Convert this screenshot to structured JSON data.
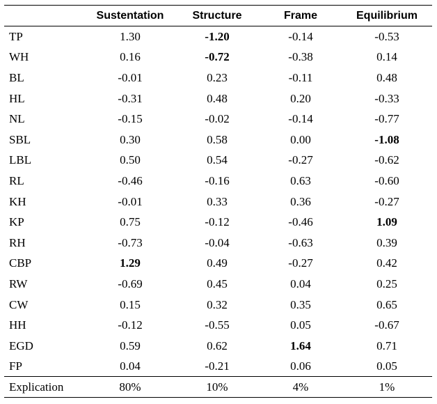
{
  "table": {
    "columns": [
      "",
      "Sustentation",
      "Structure",
      "Frame",
      "Equilibrium"
    ],
    "rows": [
      {
        "label": "TP",
        "values": [
          "1.30",
          "-1.20",
          "-0.14",
          "-0.53"
        ],
        "bold": [
          false,
          true,
          false,
          false
        ]
      },
      {
        "label": "WH",
        "values": [
          "0.16",
          "-0.72",
          "-0.38",
          "0.14"
        ],
        "bold": [
          false,
          true,
          false,
          false
        ]
      },
      {
        "label": "BL",
        "values": [
          "-0.01",
          "0.23",
          "-0.11",
          "0.48"
        ],
        "bold": [
          false,
          false,
          false,
          false
        ]
      },
      {
        "label": "HL",
        "values": [
          "-0.31",
          "0.48",
          "0.20",
          "-0.33"
        ],
        "bold": [
          false,
          false,
          false,
          false
        ]
      },
      {
        "label": "NL",
        "values": [
          "-0.15",
          "-0.02",
          "-0.14",
          "-0.77"
        ],
        "bold": [
          false,
          false,
          false,
          false
        ]
      },
      {
        "label": "SBL",
        "values": [
          "0.30",
          "0.58",
          "0.00",
          "-1.08"
        ],
        "bold": [
          false,
          false,
          false,
          true
        ]
      },
      {
        "label": "LBL",
        "values": [
          "0.50",
          "0.54",
          "-0.27",
          "-0.62"
        ],
        "bold": [
          false,
          false,
          false,
          false
        ]
      },
      {
        "label": "RL",
        "values": [
          "-0.46",
          "-0.16",
          "0.63",
          "-0.60"
        ],
        "bold": [
          false,
          false,
          false,
          false
        ]
      },
      {
        "label": "KH",
        "values": [
          "-0.01",
          "0.33",
          "0.36",
          "-0.27"
        ],
        "bold": [
          false,
          false,
          false,
          false
        ]
      },
      {
        "label": "KP",
        "values": [
          "0.75",
          "-0.12",
          "-0.46",
          "1.09"
        ],
        "bold": [
          false,
          false,
          false,
          true
        ]
      },
      {
        "label": "RH",
        "values": [
          "-0.73",
          "-0.04",
          "-0.63",
          "0.39"
        ],
        "bold": [
          false,
          false,
          false,
          false
        ]
      },
      {
        "label": "CBP",
        "values": [
          "1.29",
          "0.49",
          "-0.27",
          "0.42"
        ],
        "bold": [
          true,
          false,
          false,
          false
        ]
      },
      {
        "label": "RW",
        "values": [
          "-0.69",
          "0.45",
          "0.04",
          "0.25"
        ],
        "bold": [
          false,
          false,
          false,
          false
        ]
      },
      {
        "label": "CW",
        "values": [
          "0.15",
          "0.32",
          "0.35",
          "0.65"
        ],
        "bold": [
          false,
          false,
          false,
          false
        ]
      },
      {
        "label": "HH",
        "values": [
          "-0.12",
          "-0.55",
          "0.05",
          "-0.67"
        ],
        "bold": [
          false,
          false,
          false,
          false
        ]
      },
      {
        "label": "EGD",
        "values": [
          "0.59",
          "0.62",
          "1.64",
          "0.71"
        ],
        "bold": [
          false,
          false,
          true,
          false
        ]
      },
      {
        "label": "FP",
        "values": [
          "0.04",
          "-0.21",
          "0.06",
          "0.05"
        ],
        "bold": [
          false,
          false,
          false,
          false
        ]
      }
    ],
    "summary": {
      "label": "Explication",
      "values": [
        "80%",
        "10%",
        "4%",
        "1%"
      ]
    }
  }
}
